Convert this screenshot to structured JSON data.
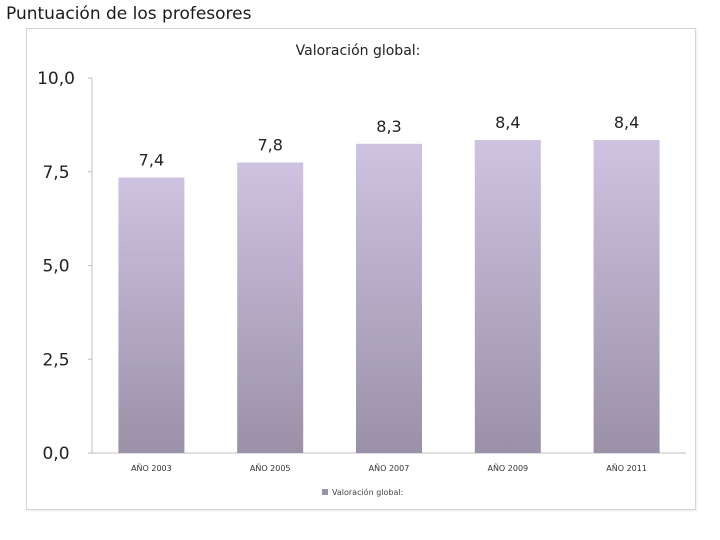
{
  "page": {
    "heading": "Puntuación de los profesores"
  },
  "colors": {
    "bar_top": "#cec3e1",
    "bar_bottom": "#9a91a8",
    "bar_cap": "#ffffff",
    "axis": "#bfbfbf"
  },
  "chart_data": {
    "type": "bar",
    "title": "Valoración global:",
    "categories": [
      "AÑO 2003",
      "AÑO 2005",
      "AÑO 2007",
      "AÑO 2009",
      "AÑO 2011"
    ],
    "series": [
      {
        "name": "Valoración global:",
        "values": [
          7.4,
          7.8,
          8.3,
          8.4,
          8.4
        ]
      }
    ],
    "value_labels": [
      "7,4",
      "7,8",
      "8,3",
      "8,4",
      "8,4"
    ],
    "y_ticks": [
      "0,0",
      "2,5",
      "5,0",
      "7,5",
      "10,0"
    ],
    "ylim": [
      0,
      10
    ],
    "grid": false,
    "legend_position": "bottom"
  }
}
